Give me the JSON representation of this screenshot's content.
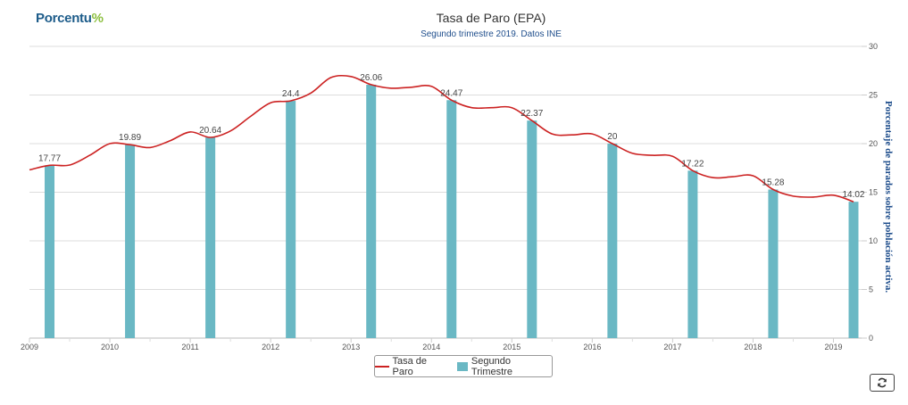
{
  "logo": {
    "text_main": "Porcentu",
    "text_accent": "%"
  },
  "icons": {
    "refresh": "refresh-icon"
  },
  "colors": {
    "line": "#cc2222",
    "bars": "#6ab8c4",
    "grid": "#dddddd",
    "axis_label": "#1f4e8c"
  },
  "chart_data": {
    "type": "bar",
    "title": "Tasa de Paro (EPA)",
    "subtitle": "Segundo trimestre 2019. Datos INE",
    "ylabel": "Porcentaje de parados sobre población activa.",
    "xlabel": "",
    "y_axis_position": "right",
    "ylim": [
      0,
      30
    ],
    "y_ticks": [
      0,
      5,
      10,
      15,
      20,
      25,
      30
    ],
    "x_ticks": [
      "2009",
      "2010",
      "2011",
      "2012",
      "2013",
      "2014",
      "2015",
      "2016",
      "2017",
      "2018",
      "2019"
    ],
    "grid": true,
    "legend": "bottom-center",
    "series": [
      {
        "name": "Tasa de Paro",
        "type": "line",
        "x": [
          2009.0,
          2009.25,
          2009.5,
          2009.75,
          2010.0,
          2010.25,
          2010.5,
          2010.75,
          2011.0,
          2011.25,
          2011.5,
          2011.75,
          2012.0,
          2012.25,
          2012.5,
          2012.75,
          2013.0,
          2013.25,
          2013.5,
          2013.75,
          2014.0,
          2014.25,
          2014.5,
          2014.75,
          2015.0,
          2015.25,
          2015.5,
          2015.75,
          2016.0,
          2016.25,
          2016.5,
          2016.75,
          2017.0,
          2017.25,
          2017.5,
          2017.75,
          2018.0,
          2018.25,
          2018.5,
          2018.75,
          2019.0,
          2019.25
        ],
        "values": [
          17.3,
          17.77,
          17.8,
          18.8,
          20.0,
          19.89,
          19.6,
          20.3,
          21.2,
          20.64,
          21.3,
          22.8,
          24.2,
          24.4,
          25.2,
          26.8,
          26.9,
          26.06,
          25.7,
          25.8,
          25.9,
          24.47,
          23.7,
          23.7,
          23.7,
          22.37,
          21.0,
          20.9,
          21.0,
          20.0,
          19.0,
          18.8,
          18.7,
          17.22,
          16.5,
          16.6,
          16.7,
          15.28,
          14.6,
          14.5,
          14.7,
          14.02
        ]
      },
      {
        "name": "Segundo Trimestre",
        "type": "bar",
        "x": [
          2009.25,
          2010.25,
          2011.25,
          2012.25,
          2013.25,
          2014.25,
          2015.25,
          2016.25,
          2017.25,
          2018.25,
          2019.25
        ],
        "values": [
          17.77,
          19.89,
          20.64,
          24.4,
          26.06,
          24.47,
          22.37,
          20.0,
          17.22,
          15.28,
          14.02
        ],
        "labels": [
          "17.77",
          "19.89",
          "20.64",
          "24.4",
          "26.06",
          "24.47",
          "22.37",
          "20",
          "17.22",
          "15.28",
          "14.02"
        ]
      }
    ]
  }
}
